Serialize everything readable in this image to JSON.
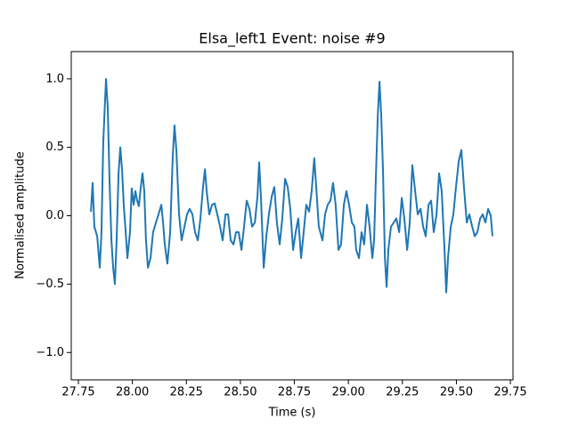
{
  "chart_data": {
    "type": "line",
    "title": "Elsa_left1 Event: noise #9",
    "xlabel": "Time (s)",
    "ylabel": "Normalised amplitude",
    "color": "#1f77b4",
    "xlim": [
      27.717,
      29.762
    ],
    "ylim": [
      -1.2,
      1.2
    ],
    "xticks": [
      27.75,
      {
        "value": 28,
        "label": "28.00"
      },
      28.25,
      {
        "value": 28.5,
        "label": "28.50"
      },
      28.75,
      {
        "value": 29,
        "label": "29.00"
      },
      29.25,
      {
        "value": 29.5,
        "label": "29.50"
      },
      29.75
    ],
    "yticks": [
      {
        "value": -1,
        "label": "−1.0"
      },
      {
        "value": -0.5,
        "label": "−0.5"
      },
      {
        "value": 0,
        "label": "0.0"
      },
      0.5,
      {
        "value": 1,
        "label": "1.0"
      }
    ],
    "x": [
      27.808,
      27.816,
      27.824,
      27.837,
      27.849,
      27.857,
      27.865,
      27.874,
      27.878,
      27.886,
      27.894,
      27.903,
      27.911,
      27.919,
      27.927,
      27.936,
      27.944,
      27.952,
      27.96,
      27.969,
      27.977,
      27.989,
      27.997,
      28.006,
      28.014,
      28.022,
      28.03,
      28.039,
      28.047,
      28.055,
      28.063,
      28.072,
      28.084,
      28.096,
      28.109,
      28.121,
      28.134,
      28.142,
      28.15,
      28.162,
      28.175,
      28.187,
      28.195,
      28.204,
      28.216,
      28.228,
      28.241,
      28.253,
      28.265,
      28.278,
      28.29,
      28.303,
      28.315,
      28.327,
      28.336,
      28.344,
      28.356,
      28.369,
      28.381,
      28.393,
      28.406,
      28.418,
      28.431,
      28.443,
      28.455,
      28.468,
      28.48,
      28.492,
      28.505,
      28.517,
      28.529,
      28.542,
      28.554,
      28.567,
      28.579,
      28.587,
      28.595,
      28.608,
      28.62,
      28.632,
      28.645,
      28.657,
      28.669,
      28.682,
      28.694,
      28.707,
      28.719,
      28.731,
      28.744,
      28.756,
      28.768,
      28.781,
      28.793,
      28.805,
      28.818,
      28.83,
      28.842,
      28.851,
      28.863,
      28.88,
      28.892,
      28.904,
      28.917,
      28.929,
      28.941,
      28.954,
      28.966,
      28.979,
      28.991,
      29.003,
      29.016,
      29.028,
      29.036,
      29.049,
      29.061,
      29.073,
      29.086,
      29.098,
      29.111,
      29.119,
      29.127,
      29.136,
      29.144,
      29.152,
      29.16,
      29.169,
      29.177,
      29.185,
      29.197,
      29.21,
      29.222,
      29.235,
      29.247,
      29.259,
      29.272,
      29.284,
      29.296,
      29.309,
      29.321,
      29.334,
      29.346,
      29.358,
      29.371,
      29.383,
      29.395,
      29.408,
      29.42,
      29.432,
      29.445,
      29.453,
      29.461,
      29.474,
      29.486,
      29.498,
      29.511,
      29.523,
      29.535,
      29.548,
      29.56,
      29.573,
      29.585,
      29.597,
      29.61,
      29.622,
      29.634,
      29.647,
      29.659,
      29.667
    ],
    "values": [
      0.03,
      0.24,
      -0.08,
      -0.15,
      -0.38,
      -0.12,
      0.53,
      0.86,
      1.0,
      0.79,
      0.27,
      -0.18,
      -0.38,
      -0.5,
      -0.18,
      0.31,
      0.5,
      0.34,
      0.08,
      -0.12,
      -0.31,
      -0.12,
      0.2,
      0.08,
      0.18,
      0.11,
      0.07,
      0.21,
      0.31,
      0.18,
      -0.18,
      -0.38,
      -0.31,
      -0.12,
      -0.05,
      0.01,
      0.08,
      -0.05,
      -0.21,
      -0.35,
      -0.12,
      0.44,
      0.66,
      0.47,
      0.01,
      -0.18,
      -0.08,
      0.01,
      0.05,
      0.01,
      -0.12,
      -0.18,
      -0.02,
      0.21,
      0.34,
      0.18,
      0.01,
      0.08,
      0.09,
      0.01,
      -0.08,
      -0.18,
      0.01,
      0.01,
      -0.18,
      -0.21,
      -0.12,
      -0.12,
      -0.25,
      -0.08,
      0.11,
      0.05,
      -0.08,
      -0.05,
      0.14,
      0.39,
      0.14,
      -0.38,
      -0.15,
      0.01,
      0.14,
      0.21,
      -0.05,
      -0.21,
      -0.02,
      0.27,
      0.21,
      0.05,
      -0.25,
      -0.12,
      -0.02,
      -0.31,
      -0.12,
      0.08,
      0.03,
      0.18,
      0.42,
      0.21,
      -0.08,
      -0.18,
      0.01,
      0.08,
      0.11,
      0.24,
      0.08,
      -0.25,
      -0.21,
      0.08,
      0.18,
      0.08,
      -0.05,
      -0.08,
      -0.25,
      -0.31,
      -0.12,
      -0.21,
      0.08,
      -0.08,
      -0.31,
      -0.18,
      0.27,
      0.73,
      0.98,
      0.73,
      0.34,
      -0.31,
      -0.52,
      -0.25,
      -0.08,
      -0.05,
      -0.02,
      -0.12,
      0.13,
      -0.02,
      -0.25,
      -0.05,
      0.37,
      0.18,
      0.01,
      0.05,
      -0.08,
      -0.15,
      0.08,
      0.11,
      -0.12,
      0.01,
      0.31,
      0.18,
      -0.25,
      -0.56,
      -0.31,
      -0.08,
      0.01,
      0.21,
      0.4,
      0.48,
      0.21,
      -0.05,
      0.01,
      -0.08,
      -0.15,
      -0.12,
      -0.02,
      0.01,
      -0.05,
      0.05,
      0.0,
      -0.15
    ]
  }
}
